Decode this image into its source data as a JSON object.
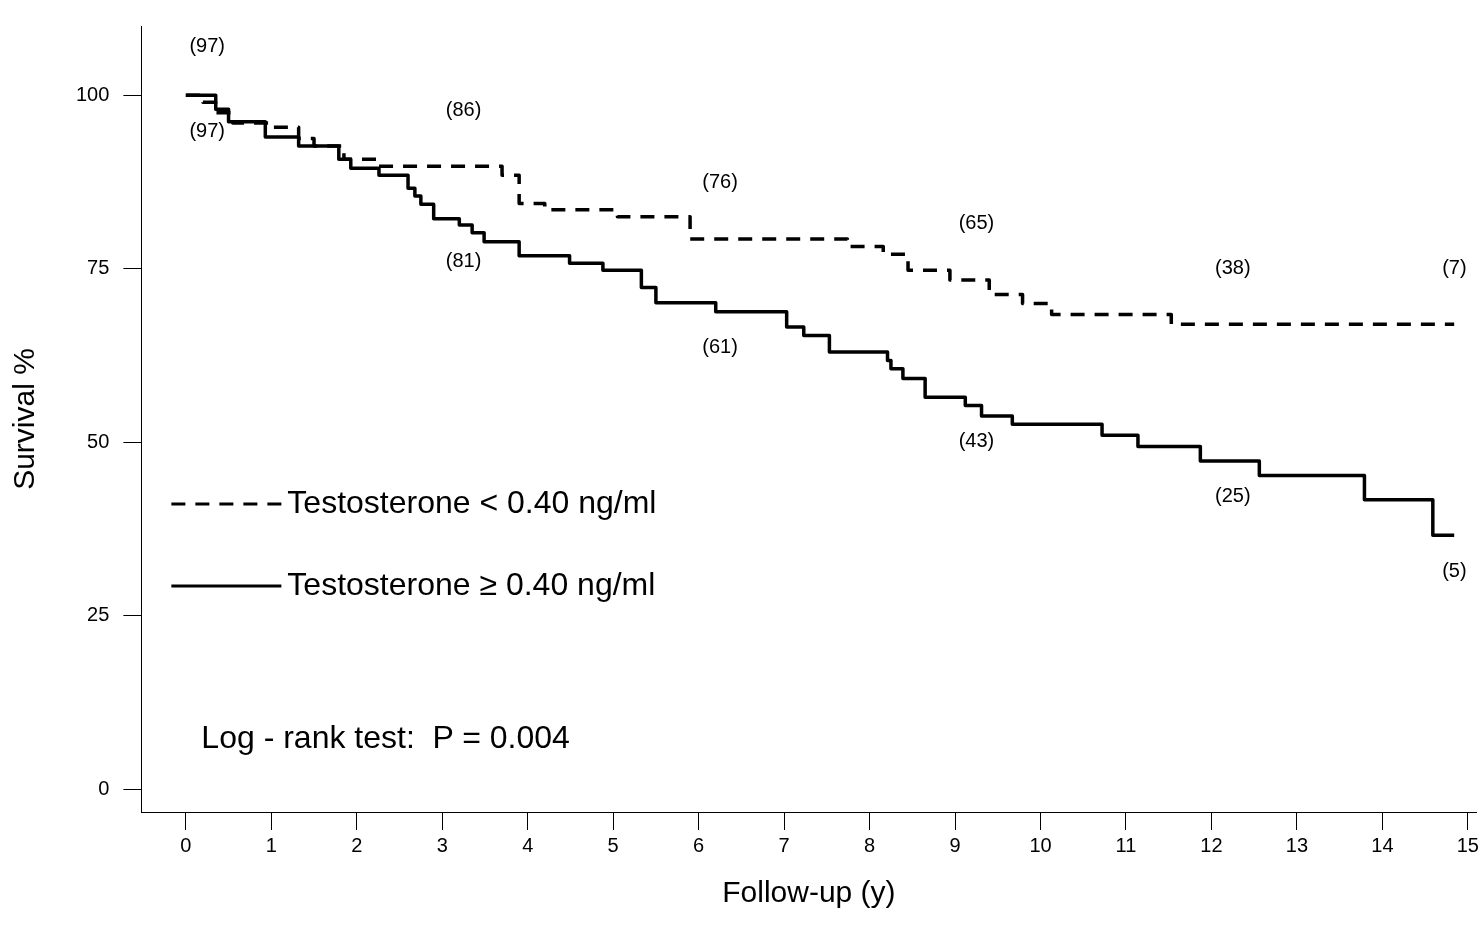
{
  "chart_data": {
    "type": "step",
    "xlabel": "Follow-up (y)",
    "ylabel": "Survival %",
    "xlim": [
      -0.52,
      15.1
    ],
    "xticks": [
      0,
      1,
      2,
      3,
      4,
      5,
      6,
      7,
      8,
      9,
      10,
      11,
      12,
      13,
      14,
      15
    ],
    "ylim": [
      -3.3,
      110
    ],
    "yticks": [
      0,
      25,
      50,
      75,
      100
    ],
    "grid": false,
    "legend": "center left",
    "marker": "none",
    "series": [
      {
        "name": "Testosterone < 0.40 ng/ml",
        "color": "#000000",
        "line_style": "dashed",
        "x": [
          0,
          0.2,
          0.35,
          0.55,
          1.0,
          1.32,
          1.5,
          1.85,
          2.26,
          3.7,
          3.9,
          4.2,
          5.05,
          5.9,
          7.74,
          8.16,
          8.45,
          8.94,
          9.4,
          9.79,
          10.13,
          11.53,
          14.84
        ],
        "values": [
          100,
          99,
          97.5,
          96,
          95.4,
          93.8,
          92.7,
          90.8,
          89.8,
          88.5,
          84.4,
          83.5,
          82.5,
          79.3,
          78.2,
          77.1,
          74.8,
          73.4,
          71.3,
          70,
          68.4,
          67,
          67
        ]
      },
      {
        "name": "Testosterone ≥ 0.40 ng/ml",
        "color": "#000000",
        "line_style": "solid",
        "x": [
          0,
          0.35,
          0.5,
          0.93,
          1.32,
          1.79,
          1.93,
          2.26,
          2.6,
          2.68,
          2.75,
          2.9,
          3.2,
          3.35,
          3.49,
          3.9,
          4.49,
          4.88,
          5.33,
          5.5,
          6.2,
          7.03,
          7.23,
          7.53,
          8.21,
          8.25,
          8.39,
          8.65,
          9.12,
          9.31,
          9.67,
          10.72,
          11.14,
          11.87,
          12.56,
          13.79,
          14.59,
          14.84
        ],
        "values": [
          100,
          98,
          96.2,
          94,
          92.7,
          90.8,
          89.5,
          88.5,
          86.6,
          85.5,
          84.3,
          82.2,
          81.3,
          80.2,
          78.9,
          76.9,
          75.8,
          74.8,
          72.3,
          70.1,
          68.8,
          66.6,
          65.4,
          63,
          61.8,
          60.6,
          59.2,
          56.5,
          55.3,
          53.8,
          52.6,
          51,
          49.4,
          47.3,
          45.2,
          41.7,
          36.6,
          36.6
        ]
      }
    ],
    "annotations": [
      "(97)",
      "(97)",
      "(86)",
      "(81)",
      "(76)",
      "(61)",
      "(65)",
      "(43)",
      "(38)",
      "(25)",
      "(7)",
      "(5)",
      "Log - rank test:  P = 0.004"
    ]
  }
}
